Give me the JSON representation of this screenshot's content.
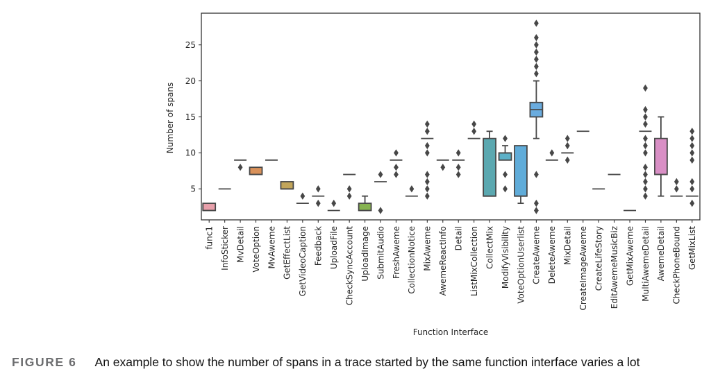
{
  "caption": {
    "label": "FIGURE 6",
    "text": "An example to show the number of spans in a trace started by the same function interface varies a lot"
  },
  "chart_data": {
    "type": "box",
    "title": "",
    "xlabel": "Function Interface",
    "ylabel": "Number of spans",
    "ylim": [
      0.7,
      29.4
    ],
    "yticks": [
      5,
      10,
      15,
      20,
      25
    ],
    "grid": false,
    "categories": [
      "func1",
      "InfoSticker",
      "MvDetail",
      "VoteOption",
      "MvAweme",
      "GetEffectList",
      "GetVideoCaption",
      "Feedback",
      "UploadFile",
      "CheckSyncAccount",
      "UploadImage",
      "SubmitAudio",
      "FreshAweme",
      "CollectionNotice",
      "MixAweme",
      "AwemeReactInfo",
      "Detail",
      "ListMixCollection",
      "CollectMix",
      "ModifyVisibility",
      "VoteOptionUserlist",
      "CreateAweme",
      "DeleteAweme",
      "MixDetail",
      "CreateImageAweme",
      "CreateLifeStory",
      "EditAwemeMusicBiz",
      "GetMixAweme",
      "MultiAwemeDetail",
      "AwemeDetail",
      "CheckPhoneBound",
      "GetMixList"
    ],
    "colors": [
      "#e8a0ab",
      "#e4a3a0",
      "#e2a68f",
      "#d9915a",
      "#d9a270",
      "#c2a55a",
      "#b8ab6a",
      "#aab46c",
      "#9cb86f",
      "#8fba72",
      "#86b350",
      "#7cbd7c",
      "#77bf8c",
      "#72c09b",
      "#6fc0aa",
      "#6dbfb8",
      "#6cbfc4",
      "#6bbecf",
      "#5ba8b0",
      "#5db1c8",
      "#60acd9",
      "#6aacdf",
      "#86b3e8",
      "#9cb0ea",
      "#b0aaea",
      "#c3a4e8",
      "#d29ee2",
      "#dd98d9",
      "#e39bd0",
      "#d98fc5",
      "#e69dbf",
      "#e89eb3"
    ],
    "boxes": [
      {
        "q1": 2,
        "median": 2,
        "q3": 3,
        "whislo": 2,
        "whishi": 3,
        "fliers": []
      },
      {
        "q1": 5,
        "median": 5,
        "q3": 5,
        "whislo": 5,
        "whishi": 5,
        "fliers": []
      },
      {
        "q1": 9,
        "median": 9,
        "q3": 9,
        "whislo": 9,
        "whishi": 9,
        "fliers": [
          8
        ]
      },
      {
        "q1": 7,
        "median": 7,
        "q3": 8,
        "whislo": 7,
        "whishi": 8,
        "fliers": []
      },
      {
        "q1": 9,
        "median": 9,
        "q3": 9,
        "whislo": 9,
        "whishi": 9,
        "fliers": []
      },
      {
        "q1": 5,
        "median": 5,
        "q3": 6,
        "whislo": 5,
        "whishi": 6,
        "fliers": []
      },
      {
        "q1": 3,
        "median": 3,
        "q3": 3,
        "whislo": 3,
        "whishi": 3,
        "fliers": [
          4
        ]
      },
      {
        "q1": 4,
        "median": 4,
        "q3": 4,
        "whislo": 4,
        "whishi": 4,
        "fliers": [
          5,
          3
        ]
      },
      {
        "q1": 2,
        "median": 2,
        "q3": 2,
        "whislo": 2,
        "whishi": 2,
        "fliers": [
          3
        ]
      },
      {
        "q1": 7,
        "median": 7,
        "q3": 7,
        "whislo": 7,
        "whishi": 7,
        "fliers": [
          5,
          4
        ]
      },
      {
        "q1": 2,
        "median": 2,
        "q3": 3,
        "whislo": 2,
        "whishi": 4,
        "fliers": []
      },
      {
        "q1": 6,
        "median": 6,
        "q3": 6,
        "whislo": 6,
        "whishi": 6,
        "fliers": [
          7,
          2
        ]
      },
      {
        "q1": 9,
        "median": 9,
        "q3": 9,
        "whislo": 9,
        "whishi": 9,
        "fliers": [
          10,
          8,
          7
        ]
      },
      {
        "q1": 4,
        "median": 4,
        "q3": 4,
        "whislo": 4,
        "whishi": 4,
        "fliers": [
          5
        ]
      },
      {
        "q1": 12,
        "median": 12,
        "q3": 12,
        "whislo": 12,
        "whishi": 12,
        "fliers": [
          14,
          13,
          11,
          10,
          7,
          6,
          5,
          4
        ]
      },
      {
        "q1": 9,
        "median": 9,
        "q3": 9,
        "whislo": 9,
        "whishi": 9,
        "fliers": [
          8
        ]
      },
      {
        "q1": 9,
        "median": 9,
        "q3": 9,
        "whislo": 9,
        "whishi": 9,
        "fliers": [
          10,
          8,
          7
        ]
      },
      {
        "q1": 12,
        "median": 12,
        "q3": 12,
        "whislo": 12,
        "whishi": 12,
        "fliers": [
          14,
          13
        ]
      },
      {
        "q1": 4,
        "median": 4,
        "q3": 12,
        "whislo": 4,
        "whishi": 13,
        "fliers": []
      },
      {
        "q1": 9,
        "median": 10,
        "q3": 10,
        "whislo": 9,
        "whishi": 11,
        "fliers": [
          12,
          7,
          5
        ]
      },
      {
        "q1": 4,
        "median": 4,
        "q3": 11,
        "whislo": 3,
        "whishi": 11,
        "fliers": []
      },
      {
        "q1": 15,
        "median": 16,
        "q3": 17,
        "whislo": 12,
        "whishi": 20,
        "fliers": [
          28,
          26,
          25,
          24,
          23,
          22,
          21,
          7,
          3,
          2
        ]
      },
      {
        "q1": 9,
        "median": 9,
        "q3": 9,
        "whislo": 9,
        "whishi": 9,
        "fliers": [
          10
        ]
      },
      {
        "q1": 10,
        "median": 10,
        "q3": 10,
        "whislo": 10,
        "whishi": 10,
        "fliers": [
          12,
          11,
          9
        ]
      },
      {
        "q1": 13,
        "median": 13,
        "q3": 13,
        "whislo": 13,
        "whishi": 13,
        "fliers": []
      },
      {
        "q1": 5,
        "median": 5,
        "q3": 5,
        "whislo": 5,
        "whishi": 5,
        "fliers": []
      },
      {
        "q1": 7,
        "median": 7,
        "q3": 7,
        "whislo": 7,
        "whishi": 7,
        "fliers": []
      },
      {
        "q1": 2,
        "median": 2,
        "q3": 2,
        "whislo": 2,
        "whishi": 2,
        "fliers": []
      },
      {
        "q1": 13,
        "median": 13,
        "q3": 13,
        "whislo": 13,
        "whishi": 13,
        "fliers": [
          19,
          16,
          15,
          14,
          12,
          11,
          10,
          8,
          7,
          6,
          5,
          4
        ]
      },
      {
        "q1": 7,
        "median": 7,
        "q3": 12,
        "whislo": 4,
        "whishi": 15,
        "fliers": []
      },
      {
        "q1": 4,
        "median": 4,
        "q3": 4,
        "whislo": 4,
        "whishi": 4,
        "fliers": [
          6,
          5
        ]
      },
      {
        "q1": 4,
        "median": 4,
        "q3": 4,
        "whislo": 4,
        "whishi": 4,
        "fliers": [
          13,
          12,
          11,
          10,
          9,
          6,
          5,
          3
        ]
      }
    ]
  }
}
